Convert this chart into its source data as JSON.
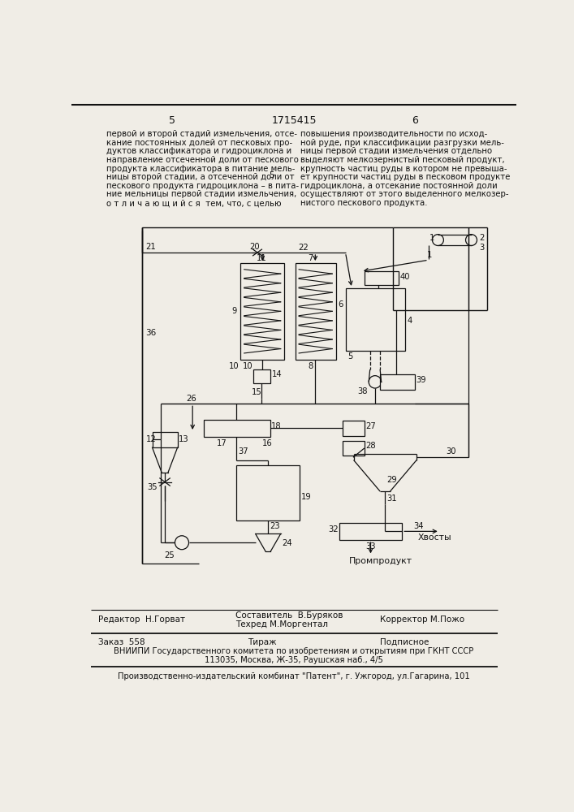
{
  "page_numbers": [
    "5",
    "1715415",
    "6"
  ],
  "left_text": [
    "первой и второй стадий измельчения, отсе-",
    "кание постоянных долей от песковых про-",
    "дуктов классификатора и гидроциклона и",
    "направление отсеченной доли от пескового",
    "продукта классификатора в питание мель-",
    "ницы второй стадии, а отсеченной доли от",
    "пескового продукта гидроциклона – в пита-",
    "ние мельницы первой стадии измельчения,",
    "о т л и ч а ю щ и й с я  тем, что, с целью"
  ],
  "right_text": [
    "повышения производительности по исход-",
    "ной руде, при классификации разгрузки мель-",
    "ницы первой стадии измельчения отдельно",
    "выделяют мелкозернистый песковый продукт,",
    "крупность частиц руды в котором не превыша-",
    "ет крупности частиц руды в песковом продукте",
    "гидроциклона, а отсекание постоянной доли",
    "осуществляют от этого выделенного мелкозер-",
    "нистого пескового продукта."
  ],
  "editor_line": "Редактор  Н.Горват",
  "composer_line1": "Составитель  В.Буряков",
  "composer_line2": "Техред М.Моргентал",
  "corrector_line": "Корректор М.Пожо",
  "order_line": "Заказ  558",
  "tirazh_line": "Тираж",
  "podpisnoe_line": "Подписное",
  "vniipmi_line": "ВНИИПИ Государственного комитета по изобретениям и открытиям при ГКНТ СССР",
  "address_line": "113035, Москва, Ж-35, Раушская наб., 4/5",
  "publisher_line": "Производственно-издательский комбинат \"Патент\", г. Ужгород, ул.Гагарина, 101",
  "bg_color": "#f0ede6",
  "text_color": "#111111",
  "line_color": "#111111"
}
